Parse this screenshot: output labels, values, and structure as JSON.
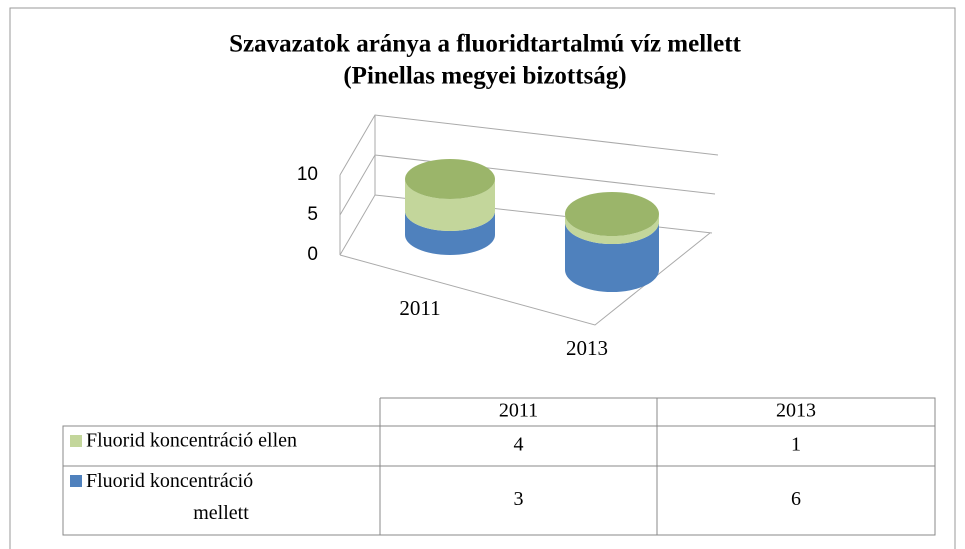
{
  "chart_data": {
    "type": "bar",
    "stacked": true,
    "title": "Szavazatok aránya a fluoridtartalmú víz mellett",
    "subtitle": "(Pinellas megyei bizottság)",
    "categories": [
      "2011",
      "2013"
    ],
    "series": [
      {
        "name": "Fluorid koncentráció mellett",
        "color": "#4f81bd",
        "values": [
          3,
          6
        ]
      },
      {
        "name": "Fluorid koncentráció ellen",
        "color": "#c3d69b",
        "values": [
          4,
          1
        ]
      }
    ],
    "ylim": [
      0,
      10
    ],
    "yticks": [
      0,
      5,
      10
    ],
    "grid": true
  }
}
